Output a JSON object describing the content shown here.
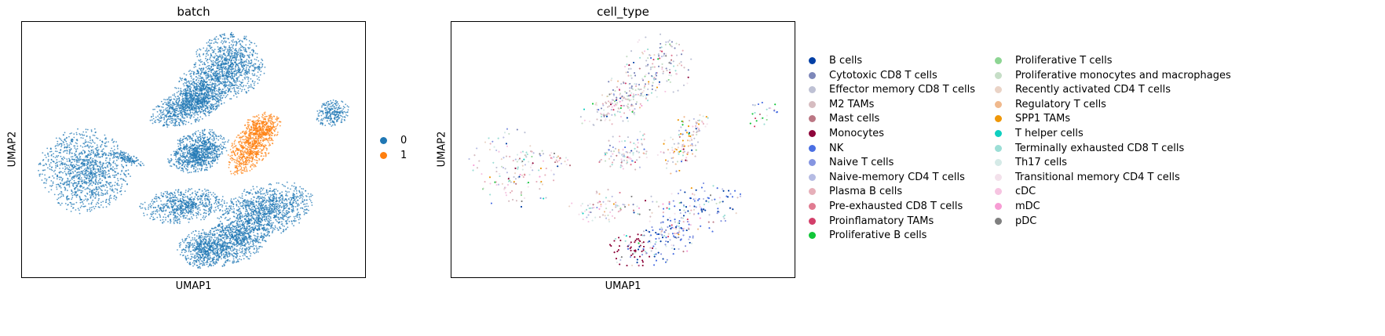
{
  "chart_data": [
    {
      "type": "scatter",
      "title": "batch",
      "xlabel": "UMAP1",
      "ylabel": "UMAP2",
      "grid": false,
      "legend_position": "right",
      "series": [
        {
          "name": "0",
          "color": "#1f77b4"
        },
        {
          "name": "1",
          "color": "#ff7f0e"
        }
      ]
    },
    {
      "type": "scatter",
      "title": "cell_type",
      "xlabel": "UMAP1",
      "ylabel": "UMAP2",
      "grid": false,
      "legend_position": "right",
      "series": [
        {
          "name": "B cells",
          "color": "#023fa5"
        },
        {
          "name": "Cytotoxic CD8 T cells",
          "color": "#7d87b9"
        },
        {
          "name": "Effector memory CD8 T cells",
          "color": "#bec1d4"
        },
        {
          "name": "M2 TAMs",
          "color": "#d6bcc0"
        },
        {
          "name": "Mast cells",
          "color": "#bb7784"
        },
        {
          "name": "Monocytes",
          "color": "#8e063b"
        },
        {
          "name": "NK",
          "color": "#4a6fe3"
        },
        {
          "name": "Naive T cells",
          "color": "#8595e1"
        },
        {
          "name": "Naive-memory CD4 T cells",
          "color": "#b5bbe3"
        },
        {
          "name": "Plasma B cells",
          "color": "#e6afb9"
        },
        {
          "name": "Pre-exhausted CD8 T cells",
          "color": "#e07b91"
        },
        {
          "name": "Proinflamatory TAMs",
          "color": "#d33f6a"
        },
        {
          "name": "Proliferative B cells",
          "color": "#11c638"
        },
        {
          "name": "Proliferative T cells",
          "color": "#8dd593"
        },
        {
          "name": "Proliferative monocytes and macrophages",
          "color": "#c6dec7"
        },
        {
          "name": "Recently activated CD4 T cells",
          "color": "#ead3c6"
        },
        {
          "name": "Regulatory T cells",
          "color": "#f0b98d"
        },
        {
          "name": "SPP1 TAMs",
          "color": "#ef9708"
        },
        {
          "name": "T helper cells",
          "color": "#0fcfc0"
        },
        {
          "name": "Terminally exhausted CD8 T cells",
          "color": "#9cded6"
        },
        {
          "name": "Th17 cells",
          "color": "#d5eae7"
        },
        {
          "name": "Transitional memory CD4 T cells",
          "color": "#f3e1eb"
        },
        {
          "name": "cDC",
          "color": "#f6c4e1"
        },
        {
          "name": "mDC",
          "color": "#f79cd4"
        },
        {
          "name": "pDC",
          "color": "#7f7f7f"
        }
      ]
    }
  ]
}
